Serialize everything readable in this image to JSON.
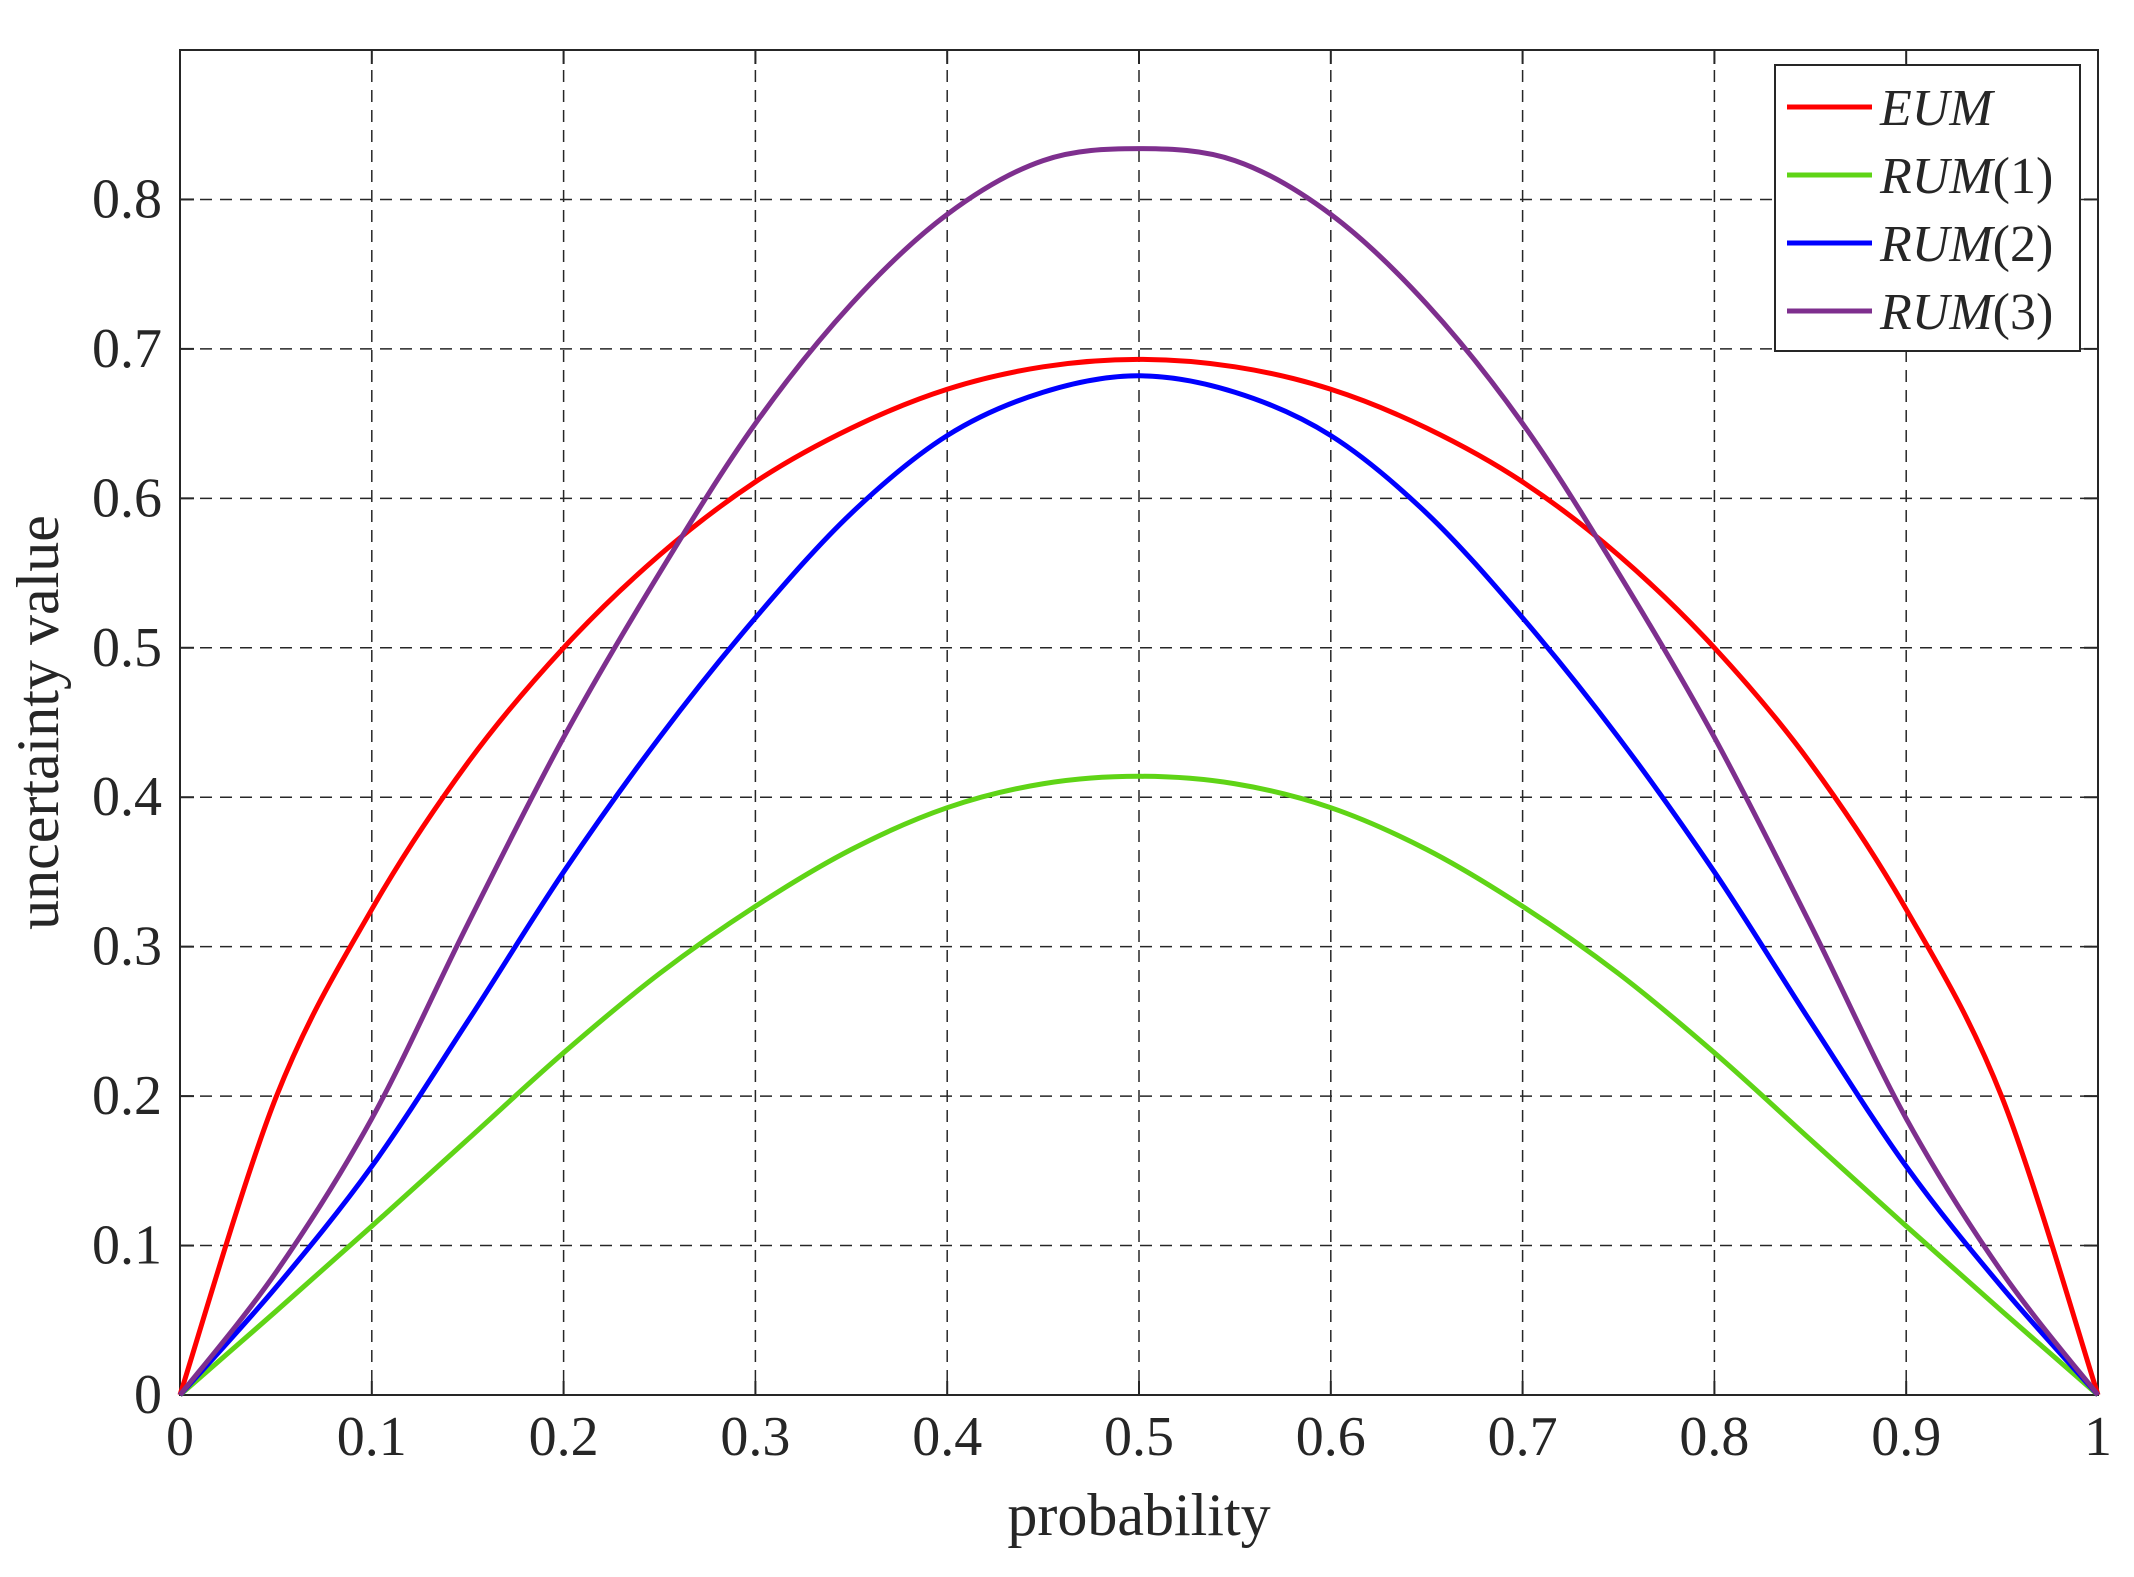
{
  "chart_data": {
    "type": "line",
    "xlabel": "probability",
    "ylabel": "uncertainty value",
    "xlim": [
      0,
      1
    ],
    "ylim": [
      0,
      0.9
    ],
    "grid": true,
    "grid_style": "dashed",
    "legend_position": "top-right",
    "x_ticks": [
      "0",
      "0.1",
      "0.2",
      "0.3",
      "0.4",
      "0.5",
      "0.6",
      "0.7",
      "0.8",
      "0.9",
      "1"
    ],
    "y_ticks": [
      "0",
      "0.1",
      "0.2",
      "0.3",
      "0.4",
      "0.5",
      "0.6",
      "0.7",
      "0.8"
    ],
    "x": [
      0,
      0.05,
      0.1,
      0.15,
      0.2,
      0.25,
      0.3,
      0.35,
      0.4,
      0.45,
      0.5,
      0.55,
      0.6,
      0.65,
      0.7,
      0.75,
      0.8,
      0.85,
      0.9,
      0.95,
      1
    ],
    "series": [
      {
        "name": "EUM",
        "color": "#ff0000",
        "values": [
          0,
          0.199,
          0.325,
          0.423,
          0.5,
          0.562,
          0.611,
          0.647,
          0.673,
          0.688,
          0.693,
          0.688,
          0.673,
          0.647,
          0.611,
          0.562,
          0.5,
          0.423,
          0.325,
          0.199,
          0
        ]
      },
      {
        "name": "RUM(1)",
        "color": "#5fd416",
        "values": [
          0,
          0.056,
          0.113,
          0.171,
          0.229,
          0.282,
          0.327,
          0.365,
          0.393,
          0.409,
          0.414,
          0.409,
          0.393,
          0.365,
          0.327,
          0.282,
          0.229,
          0.171,
          0.113,
          0.056,
          0
        ]
      },
      {
        "name": "RUM(2)",
        "color": "#0000ff",
        "values": [
          0,
          0.072,
          0.153,
          0.25,
          0.35,
          0.44,
          0.52,
          0.59,
          0.642,
          0.671,
          0.682,
          0.671,
          0.642,
          0.59,
          0.52,
          0.44,
          0.35,
          0.25,
          0.153,
          0.072,
          0
        ]
      },
      {
        "name": "RUM(3)",
        "color": "#7e2f8e",
        "values": [
          0,
          0.082,
          0.185,
          0.315,
          0.44,
          0.55,
          0.65,
          0.73,
          0.79,
          0.826,
          0.834,
          0.826,
          0.79,
          0.73,
          0.65,
          0.55,
          0.44,
          0.315,
          0.185,
          0.082,
          0
        ]
      }
    ]
  }
}
